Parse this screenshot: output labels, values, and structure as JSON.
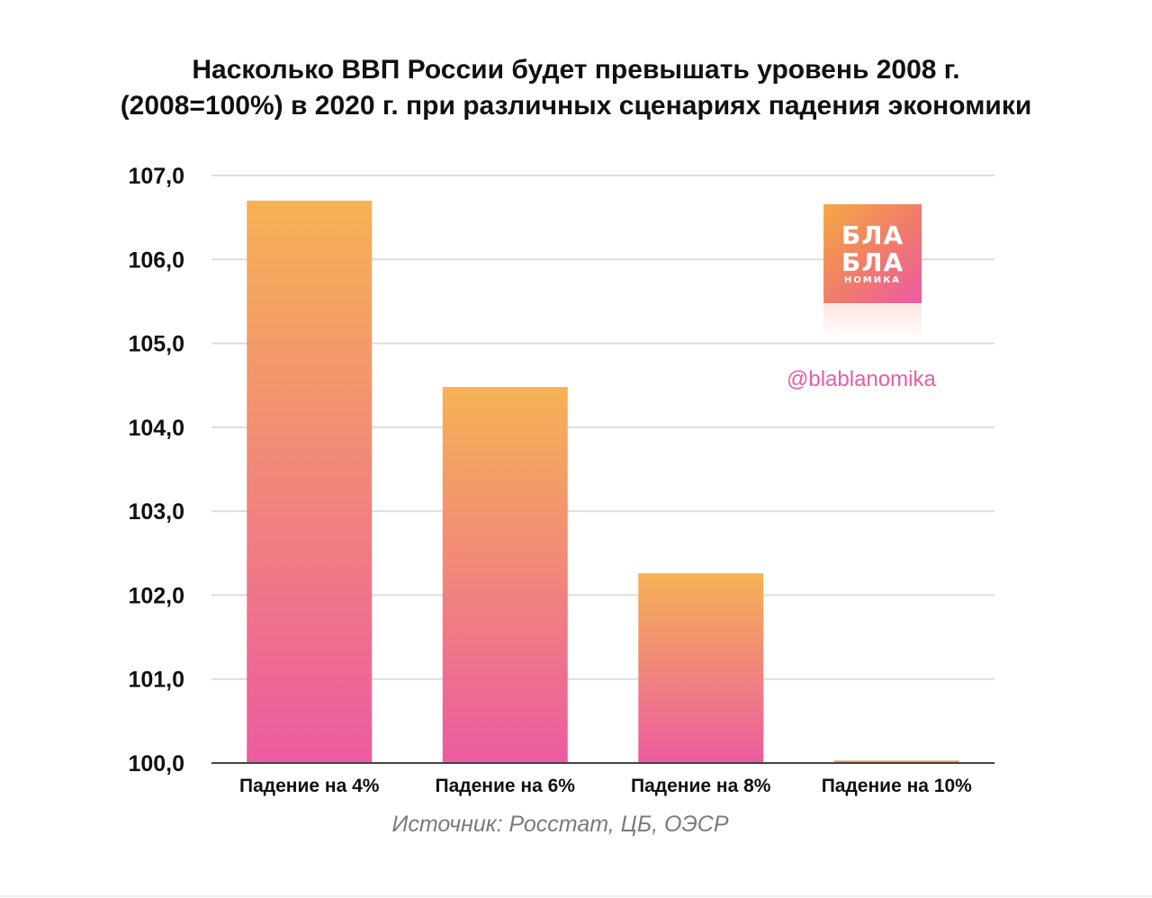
{
  "chart_data": {
    "type": "bar",
    "title_lines": [
      "Насколько ВВП России будет превышать уровень 2008 г.",
      "(2008=100%) в 2020 г. при различных сценариях падения экономики"
    ],
    "categories": [
      "Падение на 4%",
      "Падение на 6%",
      "Падение на 8%",
      "Падение на 10%"
    ],
    "values": [
      106.7,
      104.48,
      102.26,
      100.03
    ],
    "ylim": [
      100,
      107
    ],
    "yticks": [
      "100,0",
      "101,0",
      "102,0",
      "103,0",
      "104,0",
      "105,0",
      "106,0",
      "107,0"
    ],
    "grid": true,
    "colors": {
      "bar_top": "#f6b255",
      "bar_bottom": "#ec5ba0",
      "grid": "#dddddd",
      "axis": "#444444"
    },
    "source": "Источник: Росстат, ЦБ, ОЭСР"
  },
  "logo": {
    "line1": "БЛА",
    "line2": "БЛА",
    "line3": "НОМИКА",
    "handle": "@blablanomika"
  }
}
